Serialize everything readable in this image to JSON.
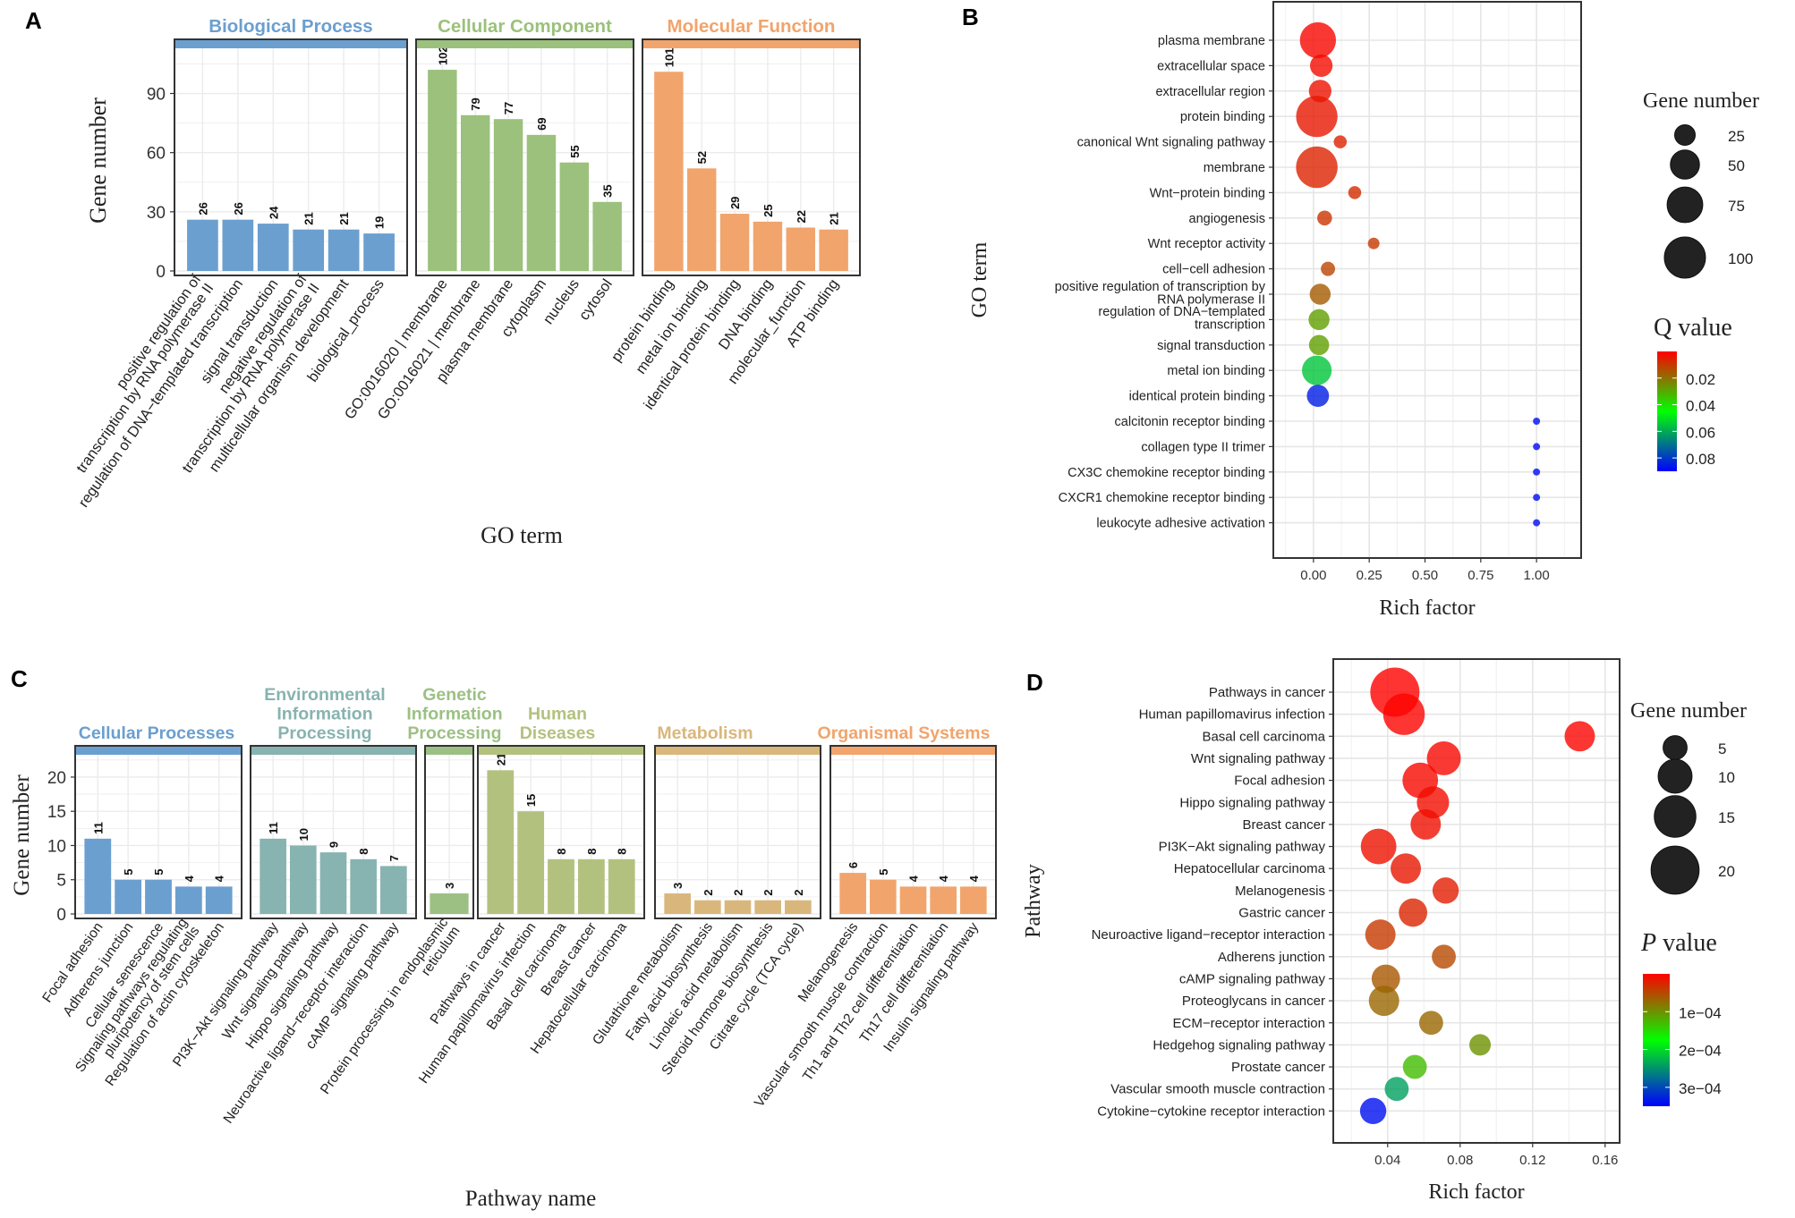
{
  "panels": {
    "A": {
      "letter": "A"
    },
    "B": {
      "letter": "B"
    },
    "C": {
      "letter": "C"
    },
    "D": {
      "letter": "D"
    }
  },
  "chart_data": [
    {
      "id": "A",
      "type": "bar",
      "title": "",
      "xlabel": "GO term",
      "ylabel": "Gene number",
      "ylim": [
        0,
        112
      ],
      "yticks": [
        0,
        30,
        60,
        90
      ],
      "grid": true,
      "facets": [
        {
          "name": "Biological Process",
          "color": "#6b9fcf",
          "categories": [
            "positive regulation of\ntranscription by RNA polymerase II",
            "regulation of DNA−templated transcription",
            "signal transduction",
            "negative regulation of\ntranscription by RNA polymerase II",
            "multicellular organism development",
            "biological_process"
          ],
          "values": [
            26,
            26,
            24,
            21,
            21,
            19
          ]
        },
        {
          "name": "Cellular Component",
          "color": "#9bc17c",
          "categories": [
            "GO:0016020 | membrane",
            "GO:0016021 | membrane",
            "plasma membrane",
            "cytoplasm",
            "nucleus",
            "cytosol"
          ],
          "values": [
            102,
            79,
            77,
            69,
            55,
            35
          ]
        },
        {
          "name": "Molecular Function",
          "color": "#f1a46c",
          "categories": [
            "protein binding",
            "metal ion binding",
            "identical protein binding",
            "DNA binding",
            "molecular_function",
            "ATP binding"
          ],
          "values": [
            101,
            52,
            29,
            25,
            22,
            21
          ]
        }
      ]
    },
    {
      "id": "B",
      "type": "scatter",
      "xlabel": "Rich factor",
      "ylabel": "GO term",
      "xlim": [
        -0.18,
        1.2
      ],
      "xticks": [
        "0.00",
        "0.25",
        "0.50",
        "0.75",
        "1.00"
      ],
      "grid": true,
      "size_legend": {
        "title": "Gene number",
        "values": [
          25,
          50,
          75,
          100
        ]
      },
      "color_legend": {
        "title": "Q value",
        "ticks": [
          "0.02",
          "0.04",
          "0.06",
          "0.08"
        ],
        "range": [
          0,
          0.09
        ],
        "low_color": "#ff0000",
        "mid_color": "#00ff00",
        "high_color": "#0000ff"
      },
      "points": [
        {
          "term": "plasma membrane",
          "x": 0.02,
          "size": 77,
          "q": 0.001
        },
        {
          "term": "extracellular space",
          "x": 0.035,
          "size": 30,
          "q": 0.002
        },
        {
          "term": "extracellular region",
          "x": 0.03,
          "size": 30,
          "q": 0.003
        },
        {
          "term": "protein binding",
          "x": 0.015,
          "size": 101,
          "q": 0.004
        },
        {
          "term": "canonical Wnt signaling pathway",
          "x": 0.12,
          "size": 10,
          "q": 0.006
        },
        {
          "term": "membrane",
          "x": 0.015,
          "size": 102,
          "q": 0.006
        },
        {
          "term": "Wnt−protein binding",
          "x": 0.185,
          "size": 10,
          "q": 0.008
        },
        {
          "term": "angiogenesis",
          "x": 0.05,
          "size": 13,
          "q": 0.009
        },
        {
          "term": "Wnt receptor activity",
          "x": 0.27,
          "size": 8,
          "q": 0.01
        },
        {
          "term": "cell−cell adhesion",
          "x": 0.065,
          "size": 12,
          "q": 0.012
        },
        {
          "term": "positive regulation of transcription by\nRNA polymerase II",
          "x": 0.03,
          "size": 26,
          "q": 0.016
        },
        {
          "term": "regulation of DNA−templated\ntranscription",
          "x": 0.025,
          "size": 26,
          "q": 0.028
        },
        {
          "term": "signal transduction",
          "x": 0.025,
          "size": 24,
          "q": 0.028
        },
        {
          "term": "metal ion binding",
          "x": 0.015,
          "size": 52,
          "q": 0.055
        },
        {
          "term": "identical protein binding",
          "x": 0.02,
          "size": 29,
          "q": 0.085
        },
        {
          "term": "calcitonin receptor binding",
          "x": 1.0,
          "size": 3,
          "q": 0.088
        },
        {
          "term": "collagen type II trimer",
          "x": 1.0,
          "size": 3,
          "q": 0.088
        },
        {
          "term": "CX3C chemokine receptor binding",
          "x": 1.0,
          "size": 3,
          "q": 0.088
        },
        {
          "term": "CXCR1 chemokine receptor binding",
          "x": 1.0,
          "size": 3,
          "q": 0.088
        },
        {
          "term": "leukocyte adhesive activation",
          "x": 1.0,
          "size": 3,
          "q": 0.088
        }
      ]
    },
    {
      "id": "C",
      "type": "bar",
      "xlabel": "Pathway name",
      "ylabel": "Gene number",
      "ylim": [
        0,
        23
      ],
      "yticks": [
        0,
        5,
        10,
        15,
        20
      ],
      "grid": true,
      "facets": [
        {
          "name": "Cellular Processes",
          "color": "#6b9fcf",
          "categories": [
            "Focal adhesion",
            "Adherens junction",
            "Cellular senescence",
            "Signaling pathways regulating\npluripotency of stem cells",
            "Regulation of actin cytoskeleton"
          ],
          "values": [
            11,
            5,
            5,
            4,
            4
          ]
        },
        {
          "name": "Environmental\nInformation\nProcessing",
          "color": "#87b3b0",
          "categories": [
            "PI3K−Akt signaling pathway",
            "Wnt signaling pathway",
            "Hippo signaling pathway",
            "Neuroactive ligand−receptor interaction",
            "cAMP signaling pathway"
          ],
          "values": [
            11,
            10,
            9,
            8,
            7
          ]
        },
        {
          "name": "Genetic\nInformation\nProcessing",
          "color": "#9cc084",
          "categories": [
            "Protein processing in endoplasmic\nreticulum"
          ],
          "values": [
            3
          ]
        },
        {
          "name": "Human\nDiseases",
          "color": "#b3c17f",
          "categories": [
            "Pathways in cancer",
            "Human papillomavirus infection",
            "Basal cell carcinoma",
            "Breast cancer",
            "Hepatocellular carcinoma"
          ],
          "values": [
            21,
            15,
            8,
            8,
            8
          ]
        },
        {
          "name": "Metabolism",
          "color": "#d9b77c",
          "categories": [
            "Glutathione metabolism",
            "Fatty acid biosynthesis",
            "Linoleic acid metabolism",
            "Steroid hormone biosynthesis",
            "Citrate cycle (TCA cycle)"
          ],
          "values": [
            3,
            2,
            2,
            2,
            2
          ]
        },
        {
          "name": "Organismal Systems",
          "color": "#f1a46c",
          "categories": [
            "Melanogenesis",
            "Vascular smooth muscle contraction",
            "Th1 and Th2 cell differentiation",
            "Th17 cell differentiation",
            "Insulin signaling pathway"
          ],
          "values": [
            6,
            5,
            4,
            4,
            4
          ]
        }
      ]
    },
    {
      "id": "D",
      "type": "scatter",
      "xlabel": "Rich factor",
      "ylabel": "Pathway",
      "xlim": [
        0.01,
        0.168
      ],
      "xticks": [
        "0.04",
        "0.08",
        "0.12",
        "0.16"
      ],
      "grid": true,
      "size_legend": {
        "title": "Gene number",
        "values": [
          5,
          10,
          15,
          20
        ]
      },
      "color_legend": {
        "title_italic": "P",
        "title_rest": " value",
        "ticks": [
          "1e−04",
          "2e−04",
          "3e−04"
        ],
        "range": [
          0,
          0.00035
        ],
        "low_color": "#ff0000",
        "mid_color": "#00ff00",
        "high_color": "#0000ff"
      },
      "points": [
        {
          "term": "Pathways in cancer",
          "x": 0.044,
          "size": 21,
          "p": 1e-06
        },
        {
          "term": "Human papillomavirus infection",
          "x": 0.049,
          "size": 15,
          "p": 2e-06
        },
        {
          "term": "Basal cell carcinoma",
          "x": 0.146,
          "size": 8,
          "p": 3e-06
        },
        {
          "term": "Wnt signaling pathway",
          "x": 0.071,
          "size": 10,
          "p": 5e-06
        },
        {
          "term": "Focal adhesion",
          "x": 0.058,
          "size": 11,
          "p": 6e-06
        },
        {
          "term": "Hippo signaling pathway",
          "x": 0.065,
          "size": 9,
          "p": 8e-06
        },
        {
          "term": "Breast cancer",
          "x": 0.061,
          "size": 8,
          "p": 1e-05
        },
        {
          "term": "PI3K−Akt signaling pathway",
          "x": 0.035,
          "size": 11,
          "p": 1.2e-05
        },
        {
          "term": "Hepatocellular carcinoma",
          "x": 0.05,
          "size": 8,
          "p": 1.5e-05
        },
        {
          "term": "Melanogenesis",
          "x": 0.072,
          "size": 6,
          "p": 2e-05
        },
        {
          "term": "Gastric cancer",
          "x": 0.054,
          "size": 7,
          "p": 2.5e-05
        },
        {
          "term": "Neuroactive ligand−receptor interaction",
          "x": 0.036,
          "size": 8,
          "p": 4e-05
        },
        {
          "term": "Adherens junction",
          "x": 0.071,
          "size": 5,
          "p": 5e-05
        },
        {
          "term": "cAMP signaling pathway",
          "x": 0.039,
          "size": 7,
          "p": 6e-05
        },
        {
          "term": "Proteoglycans in cancer",
          "x": 0.038,
          "size": 8,
          "p": 7e-05
        },
        {
          "term": "ECM−receptor interaction",
          "x": 0.064,
          "size": 5,
          "p": 7e-05
        },
        {
          "term": "Hedgehog signaling pathway",
          "x": 0.091,
          "size": 4,
          "p": 0.0001
        },
        {
          "term": "Prostate cancer",
          "x": 0.055,
          "size": 5,
          "p": 0.00013
        },
        {
          "term": "Vascular smooth muscle contraction",
          "x": 0.045,
          "size": 5,
          "p": 0.00024
        },
        {
          "term": "Cytokine−cytokine receptor interaction",
          "x": 0.032,
          "size": 6,
          "p": 0.00034
        }
      ]
    }
  ]
}
